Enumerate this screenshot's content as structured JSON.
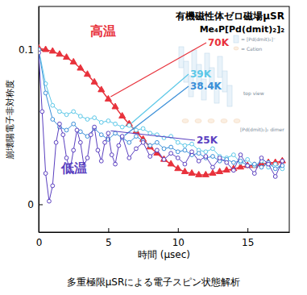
{
  "chart_data": {
    "type": "scatter",
    "title": "有機磁性体ゼロ磁場μSR",
    "subtitle": "Me₄P[Pd(dmit)₂]₂",
    "x_label": "時間 (μsec)",
    "y_label": "崩壊陽電子非対称度",
    "caption": "多重極限μSRによる電子スピン状態解析",
    "annotations": [
      {
        "text": "高温",
        "color": "#e8323c"
      },
      {
        "text": "低温",
        "color": "#5a3fc0"
      }
    ],
    "inset_labels": [
      "= [Pd(dmit)₂]⁻",
      "= Cation",
      "top view",
      "[Pd(dmit)₂]₂ dimer"
    ],
    "xlim": [
      0,
      18
    ],
    "ylim": [
      -0.018,
      0.128
    ],
    "xticks": [
      0,
      5,
      10,
      15
    ],
    "yticks": [
      0,
      0.1
    ],
    "series": [
      {
        "name": "70K",
        "color": "#e8323c",
        "marker": "triangle",
        "line_style": "solid",
        "x": [
          0,
          0.5,
          1,
          1.5,
          2,
          2.5,
          3,
          3.5,
          4,
          4.5,
          5,
          5.5,
          6,
          6.5,
          7,
          7.5,
          8,
          8.5,
          9,
          9.5,
          10,
          10.5,
          11,
          11.5,
          12,
          12.5,
          13,
          13.5,
          14,
          14.5,
          15,
          15.5,
          16,
          16.5,
          17,
          17.5
        ],
        "values": [
          0.101,
          0.1,
          0.099,
          0.097,
          0.095,
          0.092,
          0.088,
          0.084,
          0.079,
          0.074,
          0.068,
          0.063,
          0.057,
          0.052,
          0.047,
          0.042,
          0.037,
          0.033,
          0.029,
          0.026,
          0.023,
          0.021,
          0.02,
          0.019,
          0.019,
          0.02,
          0.021,
          0.022,
          0.023,
          0.024,
          0.025,
          0.025,
          0.026,
          0.027,
          0.027,
          0.028
        ]
      },
      {
        "name": "39K",
        "color": "#5cc8e8",
        "marker": "circle",
        "line_style": "solid",
        "x": [
          0,
          0.5,
          1,
          1.5,
          2,
          2.5,
          3,
          3.5,
          4,
          4.5,
          5,
          5.5,
          6,
          6.5,
          7,
          7.5,
          8,
          8.5,
          9,
          9.5,
          10,
          10.5,
          11,
          11.5,
          12,
          12.5,
          13,
          13.5,
          14,
          14.5,
          15,
          15.5,
          16,
          16.5,
          17,
          17.5
        ],
        "values": [
          0.1,
          0.078,
          0.064,
          0.06,
          0.058,
          0.06,
          0.057,
          0.055,
          0.056,
          0.053,
          0.054,
          0.052,
          0.05,
          0.051,
          0.048,
          0.049,
          0.046,
          0.045,
          0.043,
          0.044,
          0.04,
          0.038,
          0.039,
          0.035,
          0.034,
          0.036,
          0.031,
          0.03,
          0.032,
          0.027,
          0.029,
          0.025,
          0.028,
          0.024,
          0.026,
          0.023
        ]
      },
      {
        "name": "38.4K",
        "color": "#3a8fd8",
        "marker": "circle",
        "line_style": "solid",
        "x": [
          0,
          0.5,
          1,
          1.5,
          2,
          2.5,
          3,
          3.5,
          4,
          4.5,
          5,
          5.5,
          6,
          6.5,
          7,
          7.5,
          8,
          8.5,
          9,
          9.5,
          10,
          10.5,
          11,
          11.5,
          12,
          12.5,
          13,
          13.5,
          14,
          14.5,
          15,
          15.5,
          16,
          16.5,
          17,
          17.5
        ],
        "values": [
          0.1,
          0.072,
          0.055,
          0.05,
          0.048,
          0.052,
          0.047,
          0.044,
          0.049,
          0.045,
          0.042,
          0.046,
          0.043,
          0.04,
          0.044,
          0.041,
          0.038,
          0.04,
          0.036,
          0.037,
          0.034,
          0.035,
          0.032,
          0.033,
          0.03,
          0.031,
          0.028,
          0.029,
          0.027,
          0.028,
          0.025,
          0.026,
          0.024,
          0.027,
          0.023,
          0.025
        ]
      },
      {
        "name": "25K",
        "color": "#5a3fc0",
        "marker": "circle",
        "line_style": "solid",
        "x": [
          0,
          0.25,
          0.5,
          0.75,
          1,
          1.25,
          1.5,
          1.75,
          2,
          2.25,
          2.5,
          2.75,
          3,
          3.25,
          3.5,
          3.75,
          4,
          4.25,
          4.5,
          4.75,
          5,
          5.25,
          5.5,
          5.75,
          6,
          6.5,
          7,
          7.5,
          8,
          8.5,
          9,
          9.5,
          10,
          10.5,
          11,
          11.5,
          12,
          12.5,
          13,
          13.5,
          14,
          14.5,
          15,
          15.5,
          16,
          16.5,
          17,
          17.5
        ],
        "values": [
          0.098,
          0.06,
          0.02,
          0.002,
          0.012,
          0.04,
          0.052,
          0.045,
          0.03,
          0.022,
          0.035,
          0.048,
          0.04,
          0.025,
          0.03,
          0.045,
          0.05,
          0.035,
          0.028,
          0.04,
          0.046,
          0.032,
          0.026,
          0.038,
          0.044,
          0.03,
          0.036,
          0.04,
          0.031,
          0.035,
          0.029,
          0.033,
          0.03,
          0.026,
          0.034,
          0.028,
          0.031,
          0.024,
          0.03,
          0.027,
          0.022,
          0.032,
          0.025,
          0.02,
          0.03,
          0.026,
          0.018,
          0.028
        ]
      }
    ]
  }
}
